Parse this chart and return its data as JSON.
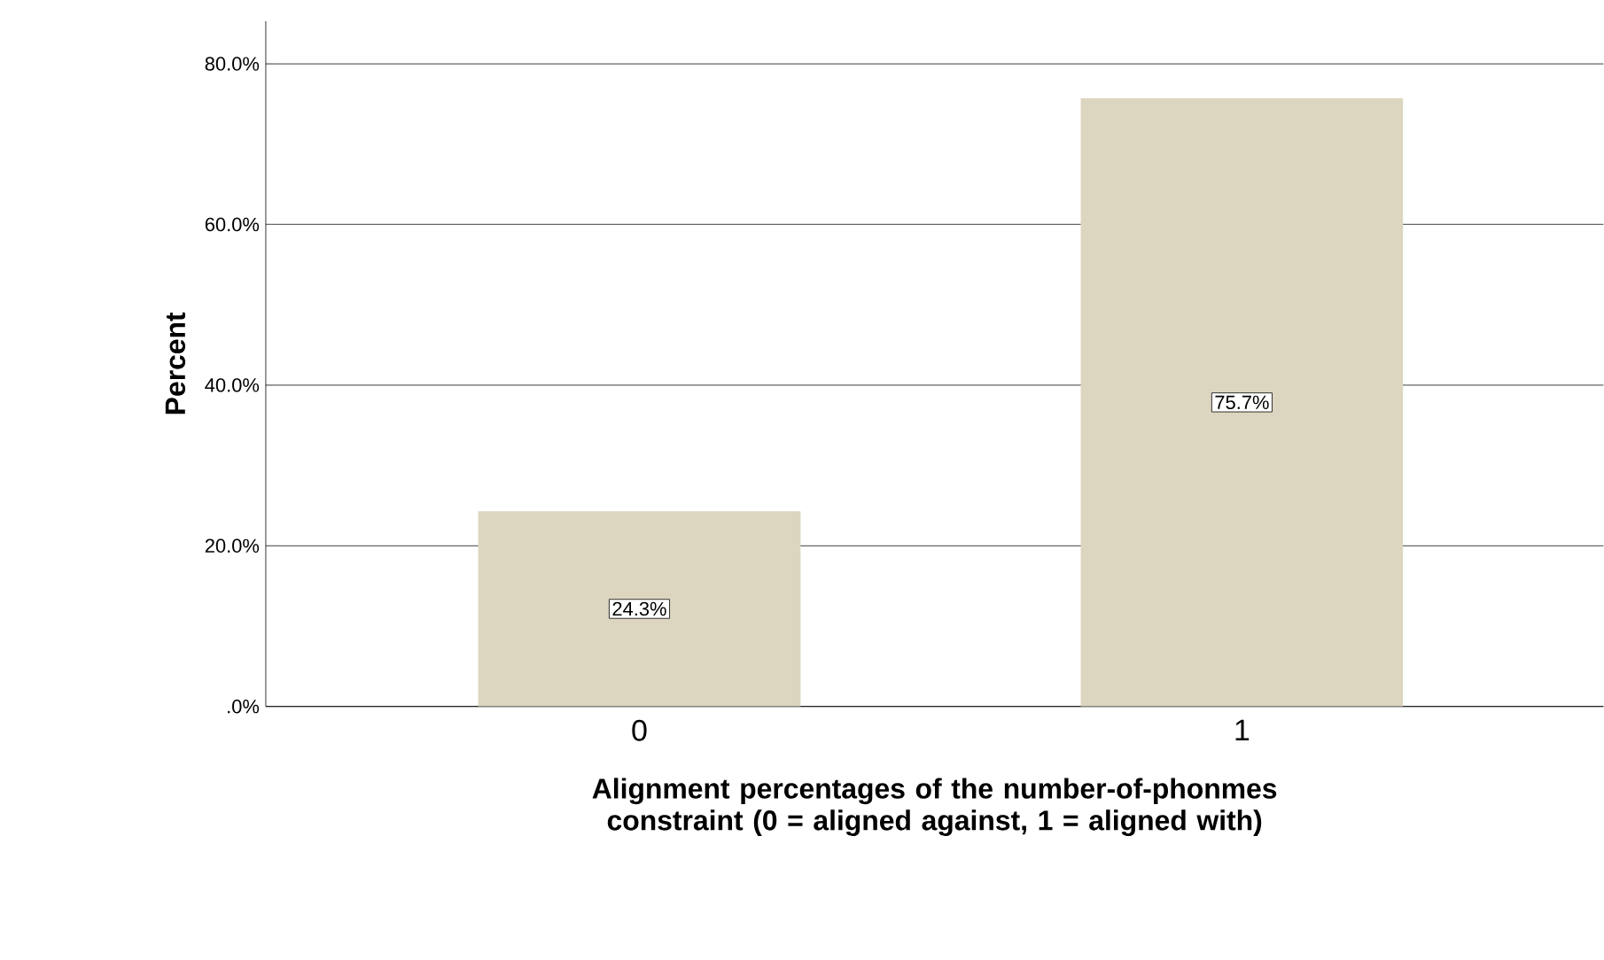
{
  "chart_data": {
    "type": "bar",
    "xlabel": "Alignment percentages of the number-of-phonmes constraint (0 = aligned against, 1 = aligned with)",
    "ylabel": "Percent",
    "categories": [
      "0",
      "1"
    ],
    "values": [
      24.3,
      75.7
    ],
    "color": "#dcd6c0",
    "value_labels": [
      "24.3%",
      "75.7%"
    ],
    "ylim": [
      0,
      85.3
    ],
    "yticks": [
      {
        "value": 0,
        "label": ".0%"
      },
      {
        "value": 20,
        "label": "20.0%"
      },
      {
        "value": 40,
        "label": "40.0%"
      },
      {
        "value": 60,
        "label": "60.0%"
      },
      {
        "value": 80,
        "label": "80.0%"
      }
    ],
    "grid": "y"
  }
}
